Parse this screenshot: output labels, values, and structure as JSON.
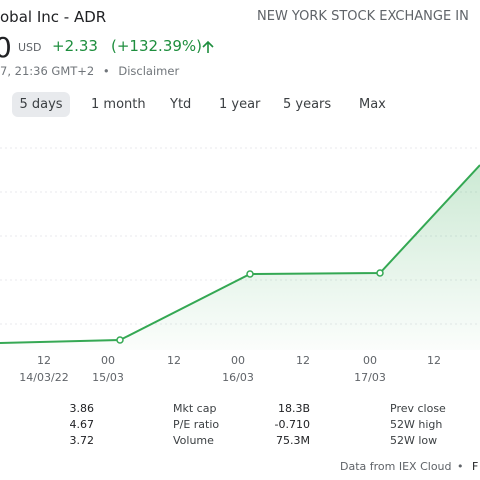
{
  "header": {
    "title": "obal Inc - ADR",
    "exchange": "NEW YORK STOCK EXCHANGE IN",
    "price": "0",
    "currency": "USD",
    "change": "+2.33",
    "change_percent": "(+132.39%)",
    "timestamp": "7, 21:36 GMT+2",
    "separator": "•",
    "disclaimer": "Disclaimer"
  },
  "tabs": [
    "5 days",
    "1 month",
    "Ytd",
    "1 year",
    "5 years",
    "Max"
  ],
  "x_labels": {
    "times": [
      "12",
      "00",
      "12",
      "00",
      "12",
      "00",
      "12"
    ],
    "dates": [
      "14/03/22",
      "15/03",
      "16/03",
      "17/03"
    ]
  },
  "stats": {
    "left_values": [
      "3.86",
      "4.67",
      "3.72"
    ],
    "labels": [
      "Mkt cap",
      "P/E ratio",
      "Volume"
    ],
    "values": [
      "18.3B",
      "-0.710",
      "75.3M"
    ],
    "right_labels": [
      "Prev close",
      "52W high",
      "52W low"
    ]
  },
  "footer": {
    "source": "Data from IEX Cloud",
    "separator": "•",
    "cut": "F"
  }
}
